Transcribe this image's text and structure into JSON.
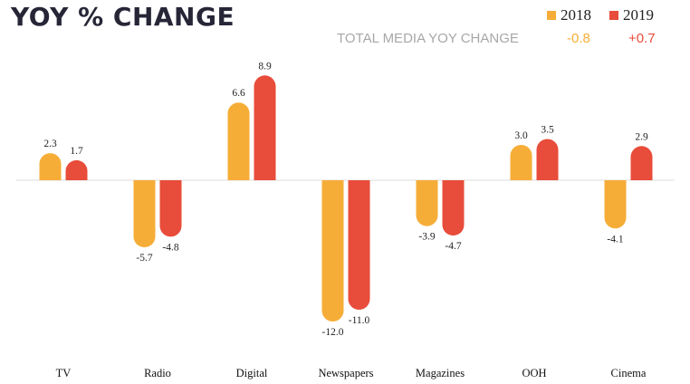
{
  "header": {
    "title": "YOY % CHANGE",
    "legend": [
      {
        "label": "2018",
        "color": "#f6ad37"
      },
      {
        "label": "2019",
        "color": "#e84c3a"
      }
    ],
    "totals_label": "TOTAL MEDIA YOY  CHANGE",
    "totals": [
      "-0.8",
      "+0.7"
    ]
  },
  "chart_data": {
    "type": "bar",
    "categories": [
      "TV",
      "Radio",
      "Digital",
      "Newspapers",
      "Magazines",
      "OOH",
      "Cinema"
    ],
    "series": [
      {
        "name": "2018",
        "color": "#f6ad37",
        "values": [
          2.3,
          -5.7,
          6.6,
          -12.0,
          -3.9,
          3.0,
          -4.1
        ]
      },
      {
        "name": "2019",
        "color": "#e84c3a",
        "values": [
          1.7,
          -4.8,
          8.9,
          -11.0,
          -4.7,
          3.5,
          2.9
        ]
      }
    ],
    "ylim": [
      -12,
      9
    ]
  }
}
